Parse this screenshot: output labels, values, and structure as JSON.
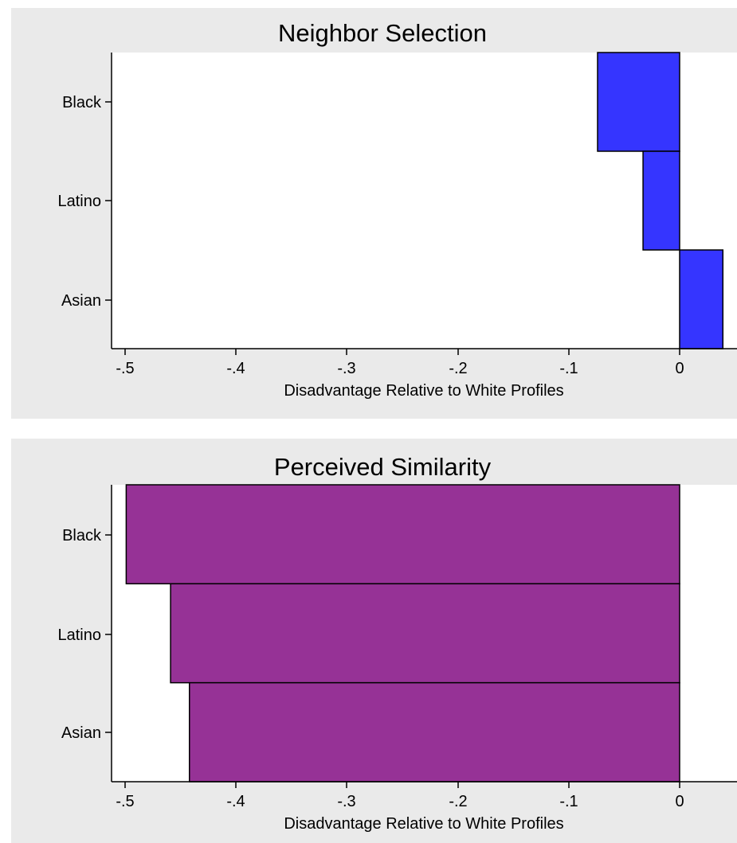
{
  "chart_data": [
    {
      "type": "bar",
      "orientation": "horizontal",
      "title": "Neighbor Selection",
      "xlabel": "Disadvantage Relative to White Profiles",
      "ylabel": "",
      "categories": [
        "Black",
        "Latino",
        "Asian"
      ],
      "values": [
        -0.074,
        -0.033,
        0.039
      ],
      "xlim": [
        -0.5,
        0.05
      ],
      "xticks": [
        -0.5,
        -0.4,
        -0.3,
        -0.2,
        -0.1,
        0
      ],
      "xtick_labels": [
        "-.5",
        "-.4",
        "-.3",
        "-.2",
        "-.1",
        "0"
      ],
      "bar_color": "#3535FF",
      "grid": false,
      "legend": "none"
    },
    {
      "type": "bar",
      "orientation": "horizontal",
      "title": "Perceived Similarity",
      "xlabel": "Disadvantage Relative to White Profiles",
      "ylabel": "",
      "categories": [
        "Black",
        "Latino",
        "Asian"
      ],
      "values": [
        -0.499,
        -0.459,
        -0.442
      ],
      "xlim": [
        -0.5,
        0.05
      ],
      "xticks": [
        -0.5,
        -0.4,
        -0.3,
        -0.2,
        -0.1,
        0
      ],
      "xtick_labels": [
        "-.5",
        "-.4",
        "-.3",
        "-.2",
        "-.1",
        "0"
      ],
      "bar_color": "#963296",
      "grid": false,
      "legend": "none"
    }
  ],
  "colors": {
    "outer_background": "#EAEAEA",
    "plot_background": "#FFFFFF",
    "axis": "#000000",
    "bar_outline": "#000000"
  }
}
